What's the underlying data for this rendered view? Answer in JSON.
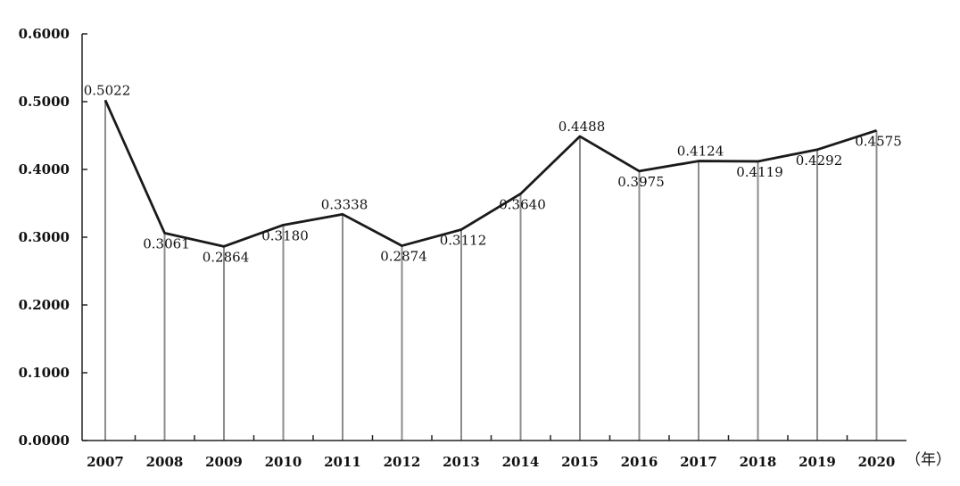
{
  "chart_data": {
    "type": "line",
    "categories": [
      "2007",
      "2008",
      "2009",
      "2010",
      "2011",
      "2012",
      "2013",
      "2014",
      "2015",
      "2016",
      "2017",
      "2018",
      "2019",
      "2020"
    ],
    "values": [
      0.5022,
      0.3061,
      0.2864,
      0.318,
      0.3338,
      0.2874,
      0.3112,
      0.364,
      0.4488,
      0.3975,
      0.4124,
      0.4119,
      0.4292,
      0.4575
    ],
    "value_labels": [
      "0.5022",
      "0.3061",
      "0.2864",
      "0.3180",
      "0.3338",
      "0.2874",
      "0.3112",
      "0.3640",
      "0.4488",
      "0.3975",
      "0.4124",
      "0.4119",
      "0.4292",
      "0.4575"
    ],
    "label_positions": [
      "above",
      "below",
      "below",
      "below",
      "above",
      "below",
      "below",
      "below",
      "above",
      "below",
      "above",
      "below",
      "below",
      "below"
    ],
    "ylim": [
      0,
      0.6
    ],
    "yticks": [
      0,
      0.1,
      0.2,
      0.3,
      0.4,
      0.5,
      0.6
    ],
    "ytick_labels": [
      "0.0000",
      "0.1000",
      "0.2000",
      "0.3000",
      "0.4000",
      "0.5000",
      "0.6000"
    ],
    "x_unit": "（年）",
    "drop_lines": true,
    "grid": false,
    "title": "",
    "xlabel": "",
    "ylabel": "",
    "colors": {
      "line": "#1a1a1a",
      "drop_line": "#8c8c8c",
      "axis": "#222222"
    }
  }
}
